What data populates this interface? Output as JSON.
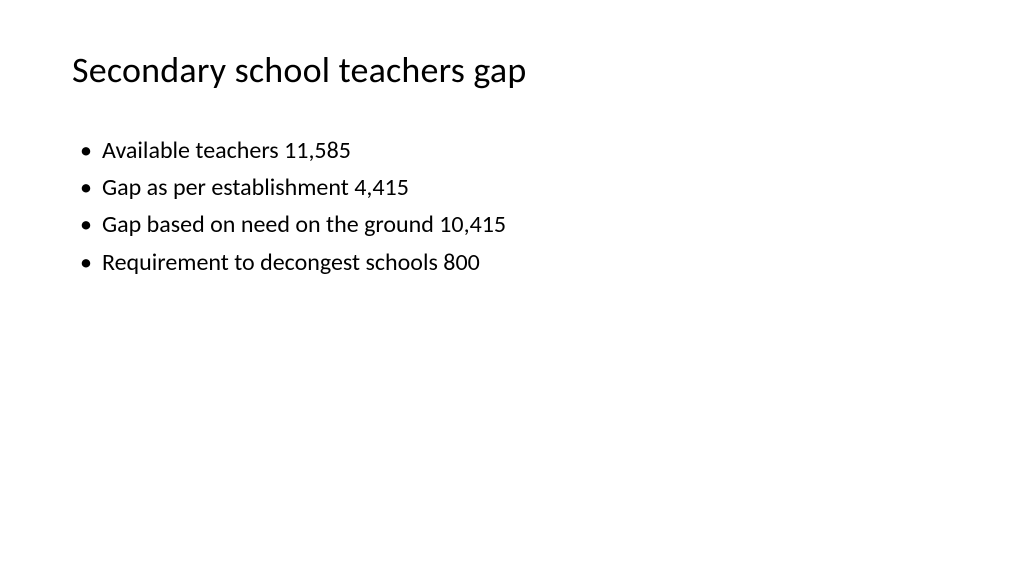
{
  "slide": {
    "title": "Secondary school teachers gap",
    "bullets": [
      "Available teachers 11,585",
      "Gap as per establishment 4,415",
      "Gap based on need on the ground 10,415",
      "Requirement to decongest schools 800"
    ],
    "background_color": "#ffffff",
    "text_color": "#000000",
    "title_fontsize": 36,
    "bullet_fontsize": 24,
    "font_family": "Calibri"
  }
}
